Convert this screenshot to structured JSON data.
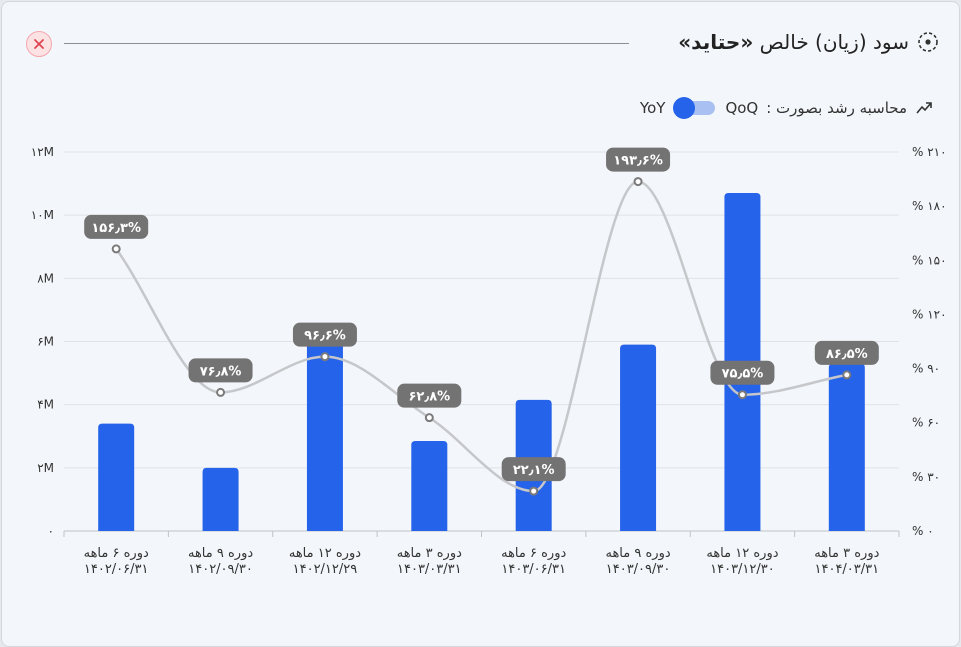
{
  "header": {
    "title_prefix": "سود (زیان) خالص",
    "title_symbol": "«حتاید»",
    "close_label": "×"
  },
  "controls": {
    "growth_label": "محاسبه رشد بصورت :",
    "option_qoq": "QoQ",
    "option_yoy": "YoY",
    "selected": "YoY"
  },
  "colors": {
    "bar": "#2563eb",
    "line": "#c6c7ca",
    "label_bg": "#737373",
    "grid": "#dfe3e8"
  },
  "chart_data": {
    "type": "bar",
    "categories": [
      [
        "دوره ۶ ماهه",
        "۱۴۰۲/۰۶/۳۱"
      ],
      [
        "دوره ۹ ماهه",
        "۱۴۰۲/۰۹/۳۰"
      ],
      [
        "دوره ۱۲ ماهه",
        "۱۴۰۲/۱۲/۲۹"
      ],
      [
        "دوره ۳ ماهه",
        "۱۴۰۳/۰۳/۳۱"
      ],
      [
        "دوره ۶ ماهه",
        "۱۴۰۳/۰۶/۳۱"
      ],
      [
        "دوره ۹ ماهه",
        "۱۴۰۳/۰۹/۳۰"
      ],
      [
        "دوره ۱۲ ماهه",
        "۱۴۰۳/۱۲/۳۰"
      ],
      [
        "دوره ۳ ماهه",
        "۱۴۰۴/۰۳/۳۱"
      ]
    ],
    "series": [
      {
        "type": "bar",
        "axis": "left",
        "values": [
          3.4,
          2.0,
          6.1,
          2.85,
          4.15,
          5.9,
          10.7,
          5.3
        ]
      },
      {
        "type": "line",
        "axis": "right",
        "values": [
          156.3,
          76.8,
          96.6,
          62.8,
          22.1,
          193.6,
          75.5,
          86.5
        ],
        "labels": [
          "۱۵۶٫۳%",
          "۷۶٫۸%",
          "۹۶٫۶%",
          "۶۲٫۸%",
          "۲۲٫۱%",
          "۱۹۳٫۶%",
          "۷۵٫۵%",
          "۸۶٫۵%"
        ]
      }
    ],
    "left_axis": {
      "ylim": [
        0,
        12
      ],
      "ticks": [
        0,
        2,
        4,
        6,
        8,
        10,
        12
      ],
      "tick_labels": [
        "۰",
        "۲M",
        "۴M",
        "۶M",
        "۸M",
        "۱۰M",
        "۱۲M"
      ]
    },
    "right_axis": {
      "ylim": [
        0,
        210
      ],
      "ticks": [
        0,
        30,
        60,
        90,
        120,
        150,
        180,
        210
      ],
      "tick_labels": [
        "% ۰",
        "% ۳۰",
        "% ۶۰",
        "% ۹۰",
        "% ۱۲۰",
        "% ۱۵۰",
        "% ۱۸۰",
        "% ۲۱۰"
      ]
    },
    "grid": true
  }
}
